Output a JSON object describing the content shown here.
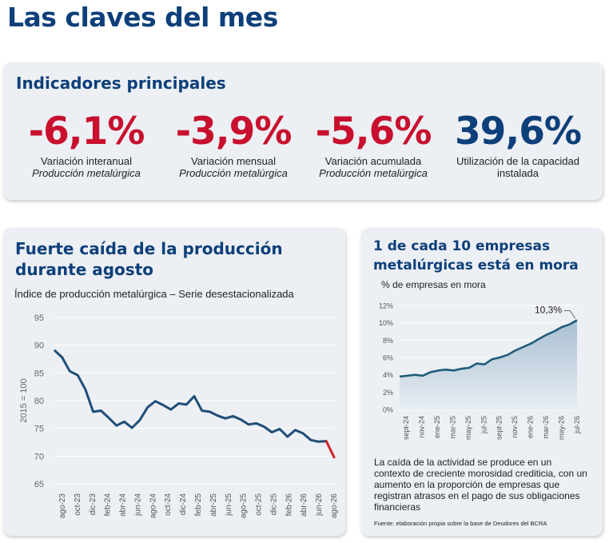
{
  "page": {
    "title": "Las claves del mes"
  },
  "kpis": {
    "title": "Indicadores principales",
    "items": [
      {
        "value": "-6,1%",
        "label": "Variación interanual",
        "sub": "Producción metalúrgica",
        "color": "#c8102e"
      },
      {
        "value": "-3,9%",
        "label": "Variación mensual",
        "sub": "Producción metalúrgica",
        "color": "#c8102e"
      },
      {
        "value": "-5,6%",
        "label": "Variación acumulada",
        "sub": "Producción metalúrgica",
        "color": "#c8102e"
      },
      {
        "value": "39,6%",
        "label": "Utilización de la capacidad",
        "sub": "instalada",
        "color": "#0d3f7a"
      }
    ]
  },
  "production_card": {
    "title": "Fuerte caída de la producción durante agosto",
    "subtitle": "Índice de producción metalúrgica – Serie desestacionalizada"
  },
  "mora_card": {
    "title": "1 de cada 10 empresas metalúrgicas está en mora",
    "subtitle": "% de empresas en mora",
    "note": "La caída de la actividad se produce en un contexto de creciente morosidad crediticia, con un aumento en la proporción de empresas que registran atrasos en el pago de sus obligaciones financieras",
    "source": "Fuente: elaboración propia sobre la base de Deudores del BCRA"
  },
  "chart_data": [
    {
      "type": "line",
      "ylabel": "2015 = 100",
      "ylim": [
        65,
        95
      ],
      "yticks": [
        95,
        90,
        85,
        80,
        75,
        70,
        65
      ],
      "grid": true,
      "tick_labels": [
        "ago-23",
        "oct-23",
        "dic-23",
        "feb-24",
        "abr-24",
        "jun-24",
        "ago-24",
        "oct-24",
        "dic-24",
        "feb-25",
        "abr-25",
        "jun-25",
        "ago-25",
        "oct-25",
        "dic-25",
        "feb-26",
        "abr-26",
        "jun-26",
        "ago-26"
      ],
      "series": [
        {
          "values": [
            89.1,
            87.8,
            85.3,
            84.6,
            82.0,
            78.0,
            78.2,
            76.9,
            75.5,
            76.2,
            75.1,
            76.5,
            78.8,
            79.9,
            79.2,
            78.4,
            79.5,
            79.3,
            80.8,
            78.2,
            78.0,
            77.3,
            76.8,
            77.2,
            76.6,
            75.7,
            75.9,
            75.3,
            74.3,
            74.9,
            73.5,
            74.7,
            74.1,
            72.9,
            72.6,
            72.7
          ],
          "color": "#1f4e79"
        },
        {
          "values": [
            72.7,
            69.8
          ],
          "color": "#d0202a",
          "note_of_position": "last month (ago-26)"
        }
      ]
    },
    {
      "type": "area",
      "ylim": [
        0,
        12
      ],
      "yticks": [
        "12%",
        "10%",
        "8%",
        "6%",
        "4%",
        "2%",
        "0%"
      ],
      "grid": true,
      "tick_labels": [
        "sept-24",
        "nov-24",
        "ene-25",
        "mar-25",
        "may-25",
        "jul-25",
        "sept-25",
        "nov-25",
        "ene-26",
        "mar-26",
        "may-26",
        "jul-26"
      ],
      "series": [
        {
          "values": [
            3.8,
            3.9,
            4.0,
            3.9,
            4.3,
            4.5,
            4.6,
            4.5,
            4.7,
            4.8,
            5.3,
            5.2,
            5.8,
            6.0,
            6.3,
            6.8,
            7.2,
            7.6,
            8.1,
            8.6,
            9.0,
            9.5,
            9.8,
            10.3
          ],
          "color": "#1f5c7a"
        }
      ],
      "annotation": "10,3%"
    }
  ]
}
